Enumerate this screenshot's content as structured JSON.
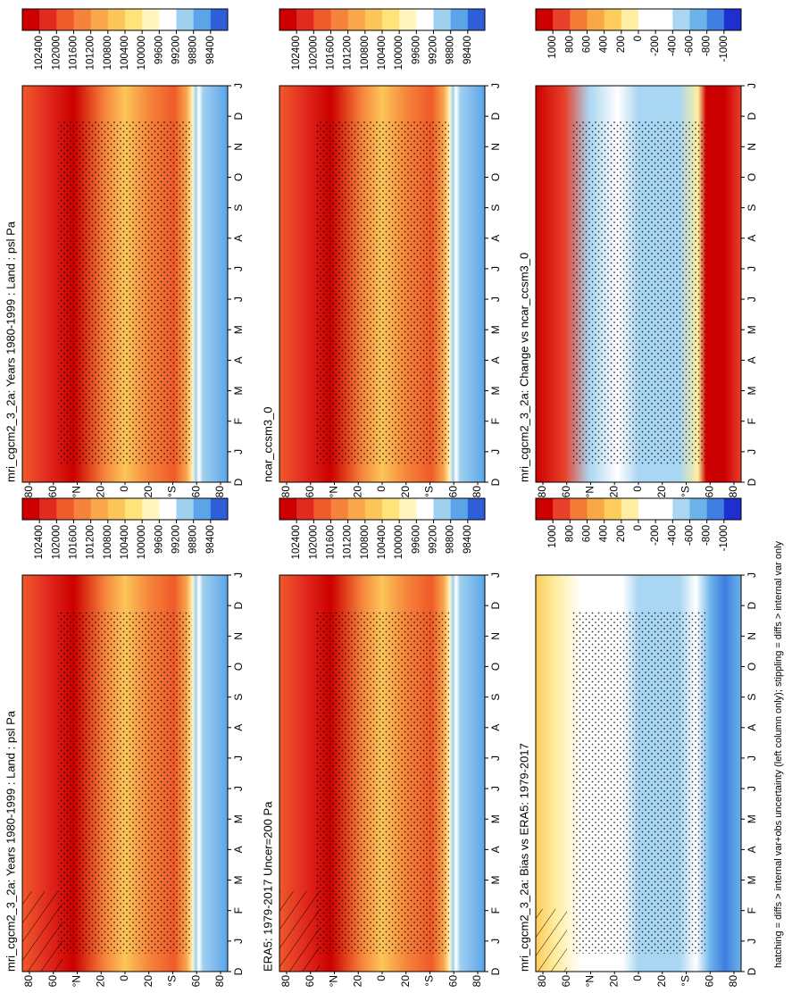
{
  "figure": {
    "panels": [
      {
        "title": "mri_cgcm2_3_2a: Years 1980-1999 : Land : psl Pa",
        "field": "absolute",
        "colorbar": {
          "lim": [
            102800,
            98000
          ],
          "ticks": [
            102400,
            102000,
            101600,
            101200,
            100800,
            100400,
            100000,
            99600,
            99200,
            98800,
            98400
          ],
          "colors": [
            "#cc0000",
            "#e22b1f",
            "#ef5a2a",
            "#f5833a",
            "#f9a74a",
            "#fcc65a",
            "#fee27a",
            "#fff7bf",
            "#ffffff",
            "#9fd0f0",
            "#5aa5e8",
            "#2f5fd8"
          ]
        }
      },
      {
        "title": "mri_cgcm2_3_2a: Years 1980-1999 : Land : psl Pa",
        "field": "absolute",
        "colorbar": {
          "lim": [
            102800,
            98000
          ],
          "ticks": [
            102400,
            102000,
            101600,
            101200,
            100800,
            100400,
            100000,
            99600,
            99200,
            98800,
            98400
          ],
          "colors": [
            "#cc0000",
            "#e22b1f",
            "#ef5a2a",
            "#f5833a",
            "#f9a74a",
            "#fcc65a",
            "#fee27a",
            "#fff7bf",
            "#ffffff",
            "#9fd0f0",
            "#5aa5e8",
            "#2f5fd8"
          ]
        }
      },
      {
        "title": "ERA5: 1979-2017 Uncer=200 Pa",
        "field": "absolute",
        "colorbar": {
          "lim": [
            102800,
            98000
          ],
          "ticks": [
            102400,
            102000,
            101600,
            101200,
            100800,
            100400,
            100000,
            99600,
            99200,
            98800,
            98400
          ],
          "colors": [
            "#cc0000",
            "#e22b1f",
            "#ef5a2a",
            "#f5833a",
            "#f9a74a",
            "#fcc65a",
            "#fee27a",
            "#fff7bf",
            "#ffffff",
            "#9fd0f0",
            "#5aa5e8",
            "#2f5fd8"
          ]
        }
      },
      {
        "title": "ncar_ccsm3_0",
        "field": "absolute",
        "colorbar": {
          "lim": [
            102800,
            98000
          ],
          "ticks": [
            102400,
            102000,
            101600,
            101200,
            100800,
            100400,
            100000,
            99600,
            99200,
            98800,
            98400
          ],
          "colors": [
            "#cc0000",
            "#e22b1f",
            "#ef5a2a",
            "#f5833a",
            "#f9a74a",
            "#fcc65a",
            "#fee27a",
            "#fff7bf",
            "#ffffff",
            "#9fd0f0",
            "#5aa5e8",
            "#2f5fd8"
          ]
        }
      },
      {
        "title": "mri_cgcm2_3_2a: Bias vs ERA5: 1979-2017",
        "field": "bias",
        "colorbar": {
          "lim": [
            1200,
            -1200
          ],
          "ticks": [
            1000,
            800,
            600,
            400,
            200,
            0,
            -200,
            -400,
            -600,
            -800,
            -1000
          ],
          "colors": [
            "#cc0000",
            "#e8402a",
            "#f37b35",
            "#f9a848",
            "#fccc5c",
            "#feeea0",
            "#ffffff",
            "#ffffff",
            "#a9d6f2",
            "#6cb3ea",
            "#3d7ee0",
            "#1e2ed0"
          ]
        }
      },
      {
        "title": "mri_cgcm2_3_2a: Change vs ncar_ccsm3_0",
        "field": "change",
        "colorbar": {
          "lim": [
            1200,
            -1200
          ],
          "ticks": [
            1000,
            800,
            600,
            400,
            200,
            0,
            -200,
            -400,
            -600,
            -800,
            -1000
          ],
          "colors": [
            "#cc0000",
            "#e8402a",
            "#f37b35",
            "#f9a848",
            "#fccc5c",
            "#feeea0",
            "#ffffff",
            "#ffffff",
            "#a9d6f2",
            "#6cb3ea",
            "#3d7ee0",
            "#1e2ed0"
          ]
        }
      }
    ],
    "month_labels": [
      "D",
      "J",
      "F",
      "M",
      "A",
      "M",
      "J",
      "J",
      "A",
      "S",
      "O",
      "N",
      "D",
      "J"
    ],
    "lat_labels": [
      "80",
      "60",
      "°N",
      "20",
      "0",
      "20",
      "°S",
      "60",
      "80"
    ],
    "footer": "hatching = diffs > internal var+obs uncertainty (left column only); stippling = diffs > internal var only"
  }
}
